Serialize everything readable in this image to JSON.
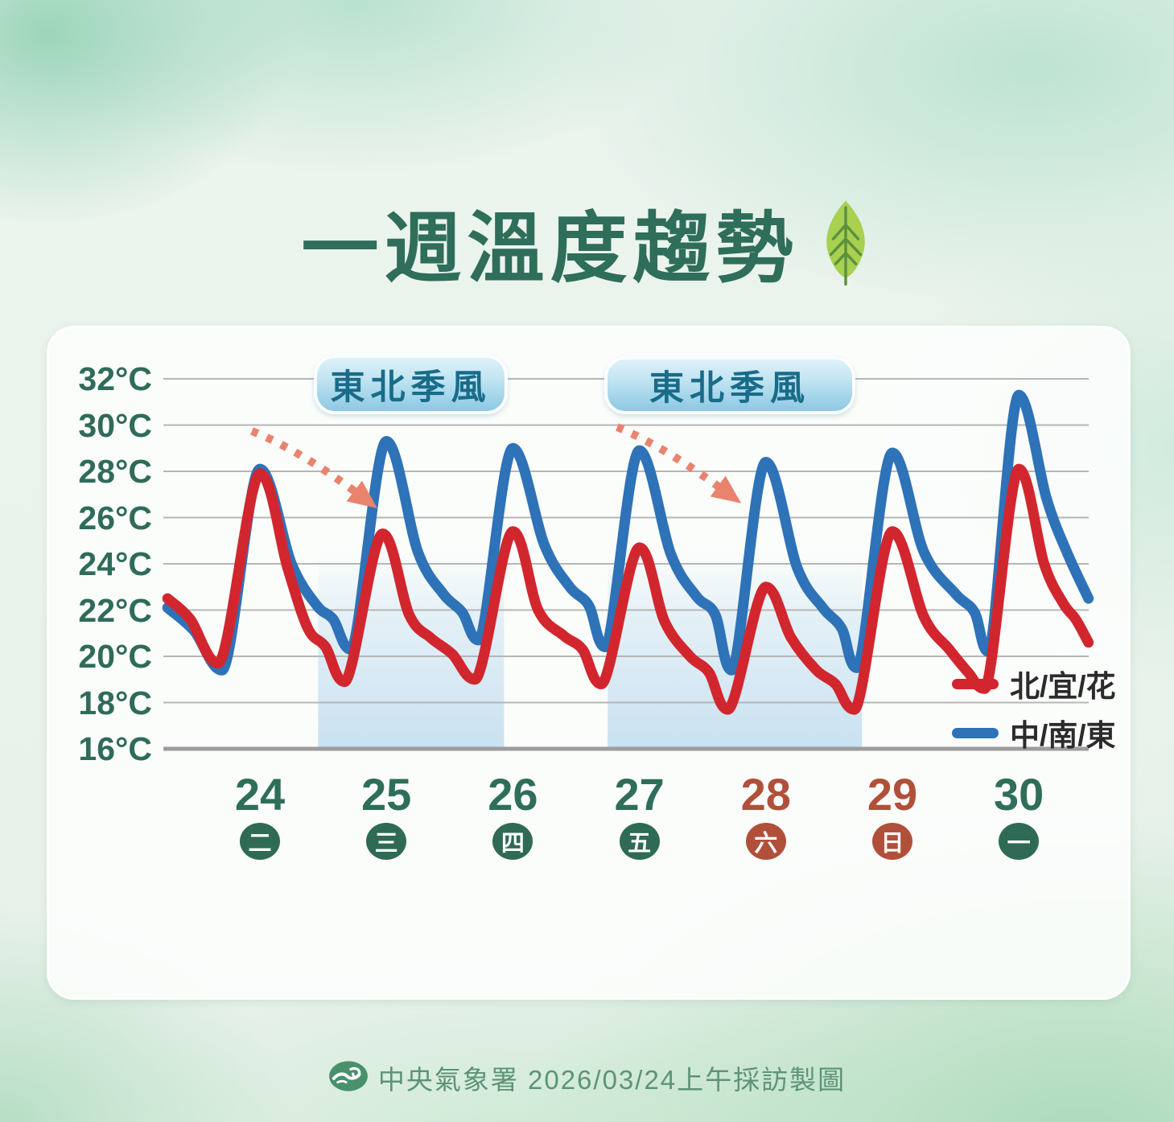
{
  "title": {
    "text": "一週溫度趨勢",
    "icon": "leaf-icon"
  },
  "footer": {
    "text": "中央氣象署 2026/03/24上午採訪製圖",
    "icon": "cwa-logo-icon"
  },
  "colors": {
    "title_green": "#2e6e5a",
    "axis_label_green": "#2f6b5a",
    "weekend_red": "#b1503a",
    "weekday_badge_green": "#2f6a55",
    "series_red": "#d2262e",
    "series_blue": "#2e72b8",
    "gridline": "#b6b6b6",
    "baseline": "#9c9c9c",
    "callout_text": "#196c89",
    "callout_fill_top": "#def1f9",
    "callout_fill_bottom": "#8cc8e3",
    "arrow_salmon": "#e9836e",
    "monsoon_band_blue": "#cfe5f2",
    "footer_green": "#5d9377"
  },
  "chart_data": {
    "type": "line",
    "title": "一週溫度趨勢",
    "ylabel": "°C",
    "ylim": [
      16,
      32
    ],
    "yticks": [
      32,
      30,
      28,
      26,
      24,
      22,
      20,
      18,
      16
    ],
    "ytick_unit": "°C",
    "grid": true,
    "legend_position": "right-bottom",
    "x_unit": "days from Mar 24 afternoon peak; integer = daily max, k-0.3 ≈ early-morning minimum",
    "days": [
      {
        "date": "24",
        "weekday": "二",
        "weekend": false
      },
      {
        "date": "25",
        "weekday": "三",
        "weekend": false
      },
      {
        "date": "26",
        "weekday": "四",
        "weekend": false
      },
      {
        "date": "27",
        "weekday": "五",
        "weekend": false
      },
      {
        "date": "28",
        "weekday": "六",
        "weekend": true
      },
      {
        "date": "29",
        "weekday": "日",
        "weekend": true
      },
      {
        "date": "30",
        "weekday": "一",
        "weekend": false
      }
    ],
    "callouts": [
      {
        "label": "東北季風"
      },
      {
        "label": "東北季風"
      }
    ],
    "trend_arrows": [
      {
        "meaning": "temperature drops after first northeast monsoon"
      },
      {
        "meaning": "temperature drops after second northeast monsoon"
      }
    ],
    "monsoon_bands": [
      {
        "from_day": 0.46,
        "to_day": 1.93
      },
      {
        "from_day": 2.75,
        "to_day": 4.76
      }
    ],
    "daily_summary": {
      "red_daily_high": [
        27.9,
        25.3,
        25.4,
        24.7,
        23.0,
        25.4,
        28.1
      ],
      "red_daily_low": [
        19.7,
        18.9,
        19.0,
        18.8,
        17.7,
        17.7,
        18.6
      ],
      "blue_daily_high": [
        28.1,
        29.3,
        29.0,
        28.9,
        28.4,
        28.8,
        31.3
      ],
      "blue_daily_low": [
        19.4,
        20.3,
        20.7,
        20.4,
        19.4,
        19.5,
        20.2
      ]
    },
    "series": [
      {
        "name": "北/宜/花",
        "color": "#d2262e",
        "points": [
          [
            -0.73,
            22.5
          ],
          [
            -0.55,
            21.6
          ],
          [
            -0.33,
            19.7
          ],
          [
            0,
            27.9
          ],
          [
            0.22,
            23.8
          ],
          [
            0.38,
            21.2
          ],
          [
            0.52,
            20.4
          ],
          [
            0.67,
            18.9
          ],
          [
            0.97,
            25.3
          ],
          [
            1.18,
            21.8
          ],
          [
            1.35,
            20.8
          ],
          [
            1.52,
            20.1
          ],
          [
            1.7,
            19.0
          ],
          [
            2,
            25.4
          ],
          [
            2.2,
            22.0
          ],
          [
            2.4,
            20.9
          ],
          [
            2.55,
            20.3
          ],
          [
            2.7,
            18.8
          ],
          [
            3,
            24.7
          ],
          [
            3.2,
            21.5
          ],
          [
            3.4,
            20.0
          ],
          [
            3.55,
            19.3
          ],
          [
            3.7,
            17.7
          ],
          [
            4,
            23.0
          ],
          [
            4.2,
            20.8
          ],
          [
            4.4,
            19.4
          ],
          [
            4.55,
            18.8
          ],
          [
            4.7,
            17.7
          ],
          [
            5,
            25.4
          ],
          [
            5.25,
            21.7
          ],
          [
            5.45,
            20.3
          ],
          [
            5.6,
            19.3
          ],
          [
            5.73,
            18.6
          ],
          [
            6,
            28.1
          ],
          [
            6.2,
            24.0
          ],
          [
            6.35,
            22.3
          ],
          [
            6.45,
            21.6
          ],
          [
            6.55,
            20.6
          ]
        ]
      },
      {
        "name": "中/南/東",
        "color": "#2e72b8",
        "points": [
          [
            -0.73,
            22.1
          ],
          [
            -0.52,
            21.1
          ],
          [
            -0.3,
            19.4
          ],
          [
            0,
            28.1
          ],
          [
            0.25,
            24.0
          ],
          [
            0.45,
            22.2
          ],
          [
            0.58,
            21.6
          ],
          [
            0.72,
            20.3
          ],
          [
            1,
            29.3
          ],
          [
            1.25,
            24.5
          ],
          [
            1.45,
            22.7
          ],
          [
            1.6,
            21.9
          ],
          [
            1.73,
            20.7
          ],
          [
            2,
            29.0
          ],
          [
            2.25,
            24.8
          ],
          [
            2.45,
            23.0
          ],
          [
            2.6,
            22.2
          ],
          [
            2.73,
            20.4
          ],
          [
            3,
            28.9
          ],
          [
            3.25,
            24.4
          ],
          [
            3.45,
            22.6
          ],
          [
            3.6,
            21.8
          ],
          [
            3.73,
            19.4
          ],
          [
            4,
            28.4
          ],
          [
            4.25,
            23.8
          ],
          [
            4.45,
            22.1
          ],
          [
            4.6,
            21.2
          ],
          [
            4.72,
            19.5
          ],
          [
            5,
            28.8
          ],
          [
            5.25,
            24.5
          ],
          [
            5.5,
            22.7
          ],
          [
            5.65,
            21.9
          ],
          [
            5.76,
            20.2
          ],
          [
            6,
            31.3
          ],
          [
            6.22,
            26.8
          ],
          [
            6.38,
            24.5
          ],
          [
            6.55,
            22.5
          ]
        ]
      }
    ]
  }
}
